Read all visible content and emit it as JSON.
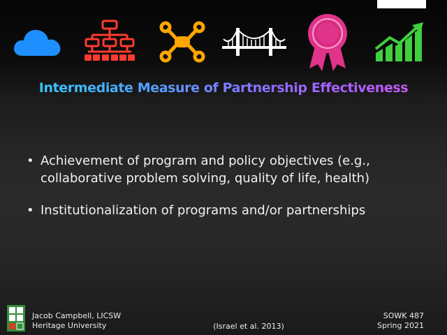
{
  "header": {
    "icons": [
      {
        "name": "cloud-icon",
        "color": "#1e8fff"
      },
      {
        "name": "org-chart-icon",
        "color": "#ff3b30"
      },
      {
        "name": "network-icon",
        "color": "#ffa500"
      },
      {
        "name": "bridge-icon",
        "color": "#ffffff"
      },
      {
        "name": "award-ribbon-icon",
        "color": "#e0338a"
      },
      {
        "name": "growth-chart-icon",
        "color": "#3fcf3f"
      }
    ]
  },
  "slide": {
    "title": "Intermediate Measure of Partnership Effectiveness",
    "bullets": [
      "Achievement of program and policy objectives (e.g., collaborative problem solving, quality of life, health)",
      "Institutionalization of programs and/or partnerships"
    ]
  },
  "footer": {
    "author": "Jacob Campbell, LICSW",
    "institution": "Heritage University",
    "citation": "(Israel et al. 2013)",
    "course": "SOWK 487",
    "term": "Spring 2021"
  }
}
